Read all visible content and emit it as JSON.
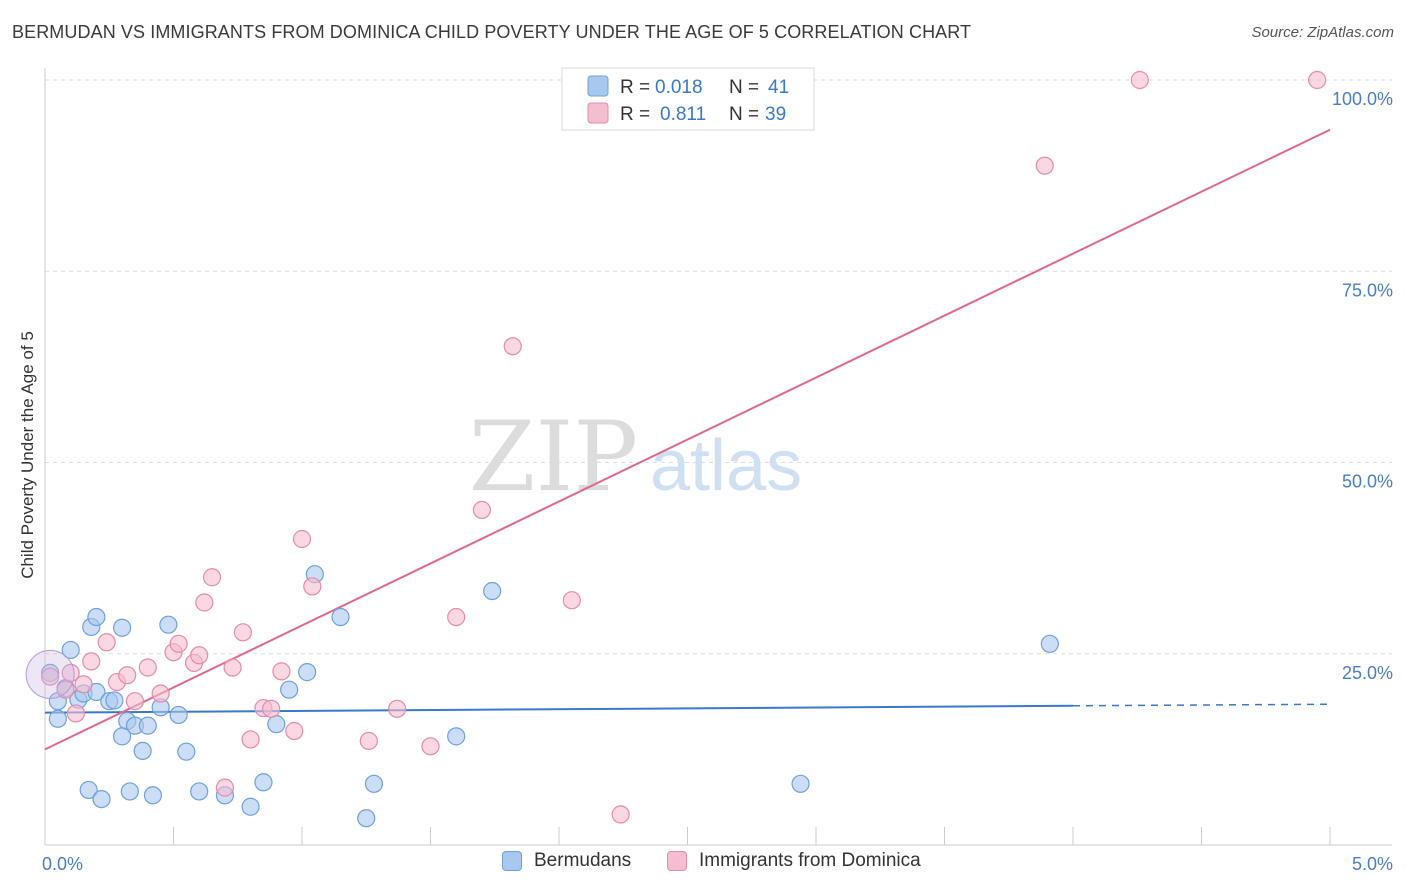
{
  "chart_data": {
    "type": "scatter",
    "title": "BERMUDAN VS IMMIGRANTS FROM DOMINICA CHILD POVERTY UNDER THE AGE OF 5 CORRELATION CHART",
    "source": "Source: ZipAtlas.com",
    "xlabel": "",
    "ylabel": "Child Poverty Under the Age of 5",
    "xlim": [
      0,
      5
    ],
    "ylim": [
      0,
      100
    ],
    "x_tick_labels": [
      {
        "value": 0,
        "label": "0.0%"
      },
      {
        "value": 5,
        "label": "5.0%"
      }
    ],
    "y_tick_labels": [
      {
        "value": 25,
        "label": "25.0%"
      },
      {
        "value": 50,
        "label": "50.0%"
      },
      {
        "value": 75,
        "label": "75.0%"
      },
      {
        "value": 100,
        "label": "100.0%"
      }
    ],
    "watermark": {
      "part1": "ZIP",
      "part2": "atlas"
    },
    "legend": [
      {
        "r_label": "R =",
        "r_value": "0.018",
        "n_label": "N =",
        "n_value": "41"
      },
      {
        "r_label": "R =",
        "r_value": "0.811",
        "n_label": "N =",
        "n_value": "39"
      }
    ],
    "series": [
      {
        "name": "Bermudans",
        "color": "#a9c8ef",
        "stroke": "#6fa0dc",
        "line_color": "#3a78d0",
        "trend": {
          "x0": 0,
          "y0": 17.3,
          "x1": 4.0,
          "y1": 18.2,
          "dash_to": 5.0,
          "dash_y": 18.4
        },
        "points": [
          [
            0.02,
            22.5
          ],
          [
            0.05,
            18.8
          ],
          [
            0.05,
            16.5
          ],
          [
            0.08,
            20.5
          ],
          [
            0.1,
            25.5
          ],
          [
            0.13,
            19.0
          ],
          [
            0.15,
            19.8
          ],
          [
            0.18,
            28.5
          ],
          [
            0.2,
            29.8
          ],
          [
            0.2,
            20.0
          ],
          [
            0.25,
            18.8
          ],
          [
            0.27,
            18.9
          ],
          [
            0.3,
            28.4
          ],
          [
            0.32,
            16.2
          ],
          [
            0.35,
            15.6
          ],
          [
            0.3,
            14.2
          ],
          [
            0.38,
            12.3
          ],
          [
            0.4,
            15.6
          ],
          [
            0.45,
            18.0
          ],
          [
            0.48,
            28.8
          ],
          [
            0.52,
            17.0
          ],
          [
            0.55,
            12.2
          ],
          [
            0.6,
            7.0
          ],
          [
            0.7,
            6.5
          ],
          [
            0.8,
            5.0
          ],
          [
            0.85,
            8.2
          ],
          [
            0.9,
            15.8
          ],
          [
            0.95,
            20.3
          ],
          [
            1.02,
            22.6
          ],
          [
            1.05,
            35.4
          ],
          [
            1.15,
            29.8
          ],
          [
            1.25,
            3.5
          ],
          [
            1.28,
            8.0
          ],
          [
            1.6,
            14.2
          ],
          [
            1.74,
            33.2
          ],
          [
            2.94,
            8.0
          ],
          [
            3.91,
            26.3
          ],
          [
            0.17,
            7.2
          ],
          [
            0.33,
            7.0
          ],
          [
            0.42,
            6.5
          ],
          [
            0.22,
            6.0
          ]
        ]
      },
      {
        "name": "Immigrants from Dominica",
        "color": "#f5bdd0",
        "stroke": "#e58aab",
        "line_color": "#e06890",
        "trend": {
          "x0": 0,
          "y0": 12.5,
          "x1": 5.0,
          "y1": 93.5
        },
        "points": [
          [
            0.02,
            22.0
          ],
          [
            0.08,
            20.3
          ],
          [
            0.1,
            22.5
          ],
          [
            0.12,
            17.2
          ],
          [
            0.15,
            21.0
          ],
          [
            0.18,
            24.0
          ],
          [
            0.24,
            26.5
          ],
          [
            0.28,
            21.3
          ],
          [
            0.32,
            22.2
          ],
          [
            0.35,
            18.8
          ],
          [
            0.4,
            23.2
          ],
          [
            0.45,
            19.8
          ],
          [
            0.5,
            25.2
          ],
          [
            0.52,
            26.3
          ],
          [
            0.58,
            23.8
          ],
          [
            0.6,
            24.8
          ],
          [
            0.62,
            31.7
          ],
          [
            0.65,
            35.0
          ],
          [
            0.7,
            7.5
          ],
          [
            0.73,
            23.2
          ],
          [
            0.77,
            27.8
          ],
          [
            0.8,
            13.8
          ],
          [
            0.85,
            17.9
          ],
          [
            0.88,
            17.8
          ],
          [
            0.92,
            22.7
          ],
          [
            0.97,
            14.9
          ],
          [
            1.0,
            40.0
          ],
          [
            1.04,
            33.8
          ],
          [
            1.26,
            13.6
          ],
          [
            1.37,
            17.8
          ],
          [
            1.5,
            12.9
          ],
          [
            1.6,
            29.8
          ],
          [
            1.7,
            43.8
          ],
          [
            1.82,
            65.2
          ],
          [
            2.05,
            32.0
          ],
          [
            2.24,
            4.0
          ],
          [
            3.89,
            88.8
          ],
          [
            4.26,
            100.0
          ],
          [
            4.95,
            100.0
          ]
        ]
      }
    ]
  }
}
